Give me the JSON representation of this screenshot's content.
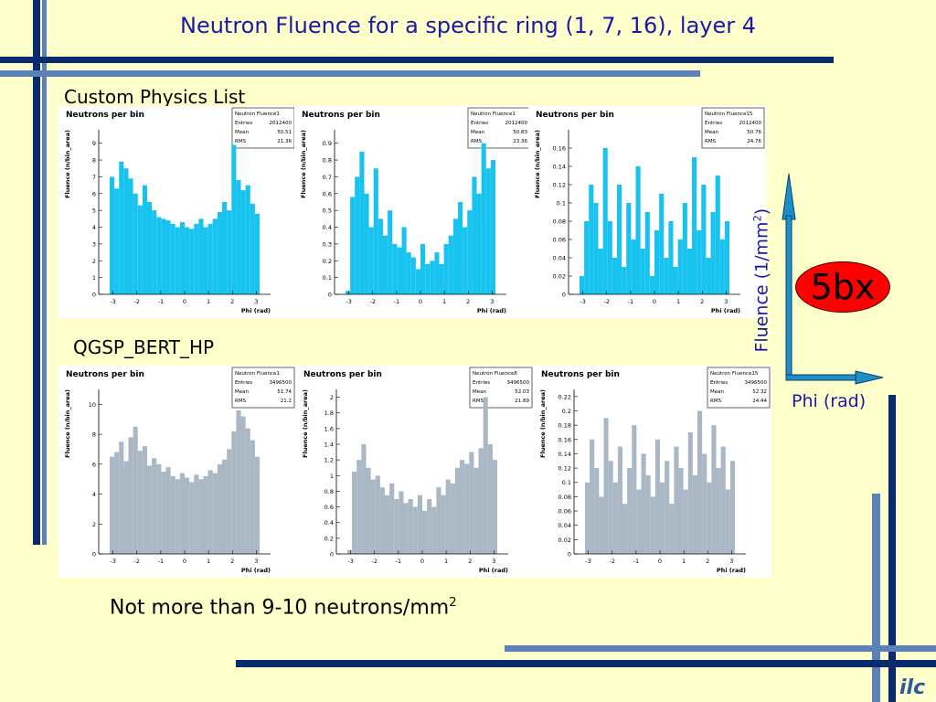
{
  "slide": {
    "title": "Neutron Fluence for a specific ring (1, 7, 16), layer 4",
    "label_custom": "Custom Physics List",
    "label_qgsp": "QGSP_BERT_HP",
    "footer_text": "Not more than 9-10 neutrons/mm",
    "footer_sup": "2",
    "fluence_axis_label": "Fluence (1/mm",
    "fluence_axis_sup": "2",
    "fluence_axis_close": ")",
    "phi_axis_label": "Phi (rad)",
    "badge": "5bx",
    "logo": "ilc"
  },
  "colors": {
    "background": "#ffffcc",
    "title": "#1a1aa8",
    "custom_bars": "#19c3f0",
    "qgsp_bars": "#aab7c4",
    "badge": "#ff0000",
    "axis_arrow": "#1e90c8"
  },
  "chart_data": [
    {
      "type": "bar",
      "panel": "custom-ring1",
      "title": "Neutrons per bin",
      "stats": {
        "name": "Neutron Fluence1",
        "entries": "2012400",
        "mean": "50.51",
        "rms": "21.36"
      },
      "xlabel": "Phi (rad)",
      "ylabel": "Fluence (n/bin_area)",
      "xlim": [
        -3.6,
        3.6
      ],
      "ylim": [
        0,
        9.8
      ],
      "xticks": [
        "-3",
        "-2",
        "-1",
        "0",
        "1",
        "2",
        "3"
      ],
      "yticks": [
        "0",
        "1",
        "2",
        "3",
        "4",
        "5",
        "6",
        "7",
        "8",
        "9"
      ],
      "ytick_values": [
        0,
        1,
        2,
        3,
        4,
        5,
        6,
        7,
        8,
        9
      ],
      "values": [
        7.0,
        6.3,
        7.9,
        7.5,
        6.9,
        6.0,
        5.3,
        6.5,
        5.5,
        5.0,
        4.6,
        4.5,
        4.4,
        4.2,
        4.0,
        4.3,
        4.0,
        3.9,
        4.2,
        4.5,
        4.0,
        4.2,
        4.5,
        4.9,
        5.5,
        5.0,
        8.9,
        6.8,
        6.2,
        6.5,
        5.4,
        4.8
      ]
    },
    {
      "type": "bar",
      "panel": "custom-ring7",
      "title": "Neutrons per bin",
      "stats": {
        "name": "Neutron Fluence1",
        "entries": "2012400",
        "mean": "50.83",
        "rms": "23.36"
      },
      "xlabel": "Phi (rad)",
      "ylabel": "Fluence (n/bin_area)",
      "xlim": [
        -3.6,
        3.6
      ],
      "ylim": [
        0,
        0.98
      ],
      "xticks": [
        "-3",
        "-2",
        "-1",
        "0",
        "1",
        "2",
        "3"
      ],
      "yticks": [
        "0",
        "0.1",
        "0.2",
        "0.3",
        "0.4",
        "0.5",
        "0.6",
        "0.7",
        "0.8",
        "0.9"
      ],
      "ytick_values": [
        0,
        0.1,
        0.2,
        0.3,
        0.4,
        0.5,
        0.6,
        0.7,
        0.8,
        0.9
      ],
      "values": [
        0.02,
        0.58,
        0.7,
        0.85,
        0.6,
        0.4,
        0.75,
        0.45,
        0.35,
        0.5,
        0.3,
        0.28,
        0.4,
        0.25,
        0.22,
        0.15,
        0.3,
        0.18,
        0.2,
        0.25,
        0.18,
        0.3,
        0.35,
        0.45,
        0.55,
        0.4,
        0.5,
        0.7,
        0.6,
        0.9,
        0.75,
        0.8
      ]
    },
    {
      "type": "bar",
      "panel": "custom-ring16",
      "title": "Neutrons per bin",
      "stats": {
        "name": "Neutron Fluence15",
        "entries": "2012400",
        "mean": "50.76",
        "rms": "24.76"
      },
      "xlabel": "Phi (rad)",
      "ylabel": "Fluence (n/bin_area)",
      "xlim": [
        -3.6,
        3.6
      ],
      "ylim": [
        0,
        0.18
      ],
      "xticks": [
        "-3",
        "-2",
        "-1",
        "0",
        "1",
        "2",
        "3"
      ],
      "yticks": [
        "0",
        "0.02",
        "0.04",
        "0.06",
        "0.08",
        "0.1",
        "0.12",
        "0.14",
        "0.16"
      ],
      "ytick_values": [
        0,
        0.02,
        0.04,
        0.06,
        0.08,
        0.1,
        0.12,
        0.14,
        0.16
      ],
      "values": [
        0.02,
        0.08,
        0.12,
        0.1,
        0.05,
        0.16,
        0.08,
        0.04,
        0.12,
        0.03,
        0.1,
        0.06,
        0.14,
        0.05,
        0.09,
        0.02,
        0.07,
        0.11,
        0.04,
        0.08,
        0.03,
        0.06,
        0.1,
        0.05,
        0.15,
        0.07,
        0.12,
        0.04,
        0.09,
        0.13,
        0.06,
        0.08
      ]
    },
    {
      "type": "bar",
      "panel": "qgsp-ring1",
      "title": "Neutrons per bin",
      "stats": {
        "name": "Neutron Fluence1",
        "entries": "3496500",
        "mean": "51.74",
        "rms": "21.2"
      },
      "xlabel": "Phi (rad)",
      "ylabel": "Fluence (n/bin_area)",
      "xlim": [
        -3.6,
        3.6
      ],
      "ylim": [
        0,
        11
      ],
      "xticks": [
        "-3",
        "-2",
        "-1",
        "0",
        "1",
        "2",
        "3"
      ],
      "yticks": [
        "0",
        "2",
        "4",
        "6",
        "8",
        "10"
      ],
      "ytick_values": [
        0,
        2,
        4,
        6,
        8,
        10
      ],
      "values": [
        6.5,
        6.8,
        7.5,
        6.2,
        7.8,
        8.5,
        6.9,
        7.2,
        5.9,
        6.4,
        6.0,
        5.5,
        5.8,
        5.2,
        5.0,
        5.4,
        5.1,
        4.8,
        5.3,
        5.0,
        5.2,
        5.6,
        5.4,
        6.0,
        6.3,
        7.0,
        8.2,
        9.6,
        9.2,
        8.4,
        7.6,
        6.5
      ]
    },
    {
      "type": "bar",
      "panel": "qgsp-ring7",
      "title": "Neutrons per bin",
      "stats": {
        "name": "Neutron Fluence8",
        "entries": "3496500",
        "mean": "52.03",
        "rms": "21.89"
      },
      "xlabel": "Phi (rad)",
      "ylabel": "Fluence (n/bin_area)",
      "xlim": [
        -3.6,
        3.6
      ],
      "ylim": [
        0,
        2.1
      ],
      "xticks": [
        "-3",
        "-2",
        "-1",
        "0",
        "1",
        "2",
        "3"
      ],
      "yticks": [
        "0",
        "0.2",
        "0.4",
        "0.6",
        "0.8",
        "1",
        "1.2",
        "1.4",
        "1.6",
        "1.8",
        "2"
      ],
      "ytick_values": [
        0,
        0.2,
        0.4,
        0.6,
        0.8,
        1,
        1.2,
        1.4,
        1.6,
        1.8,
        2
      ],
      "values": [
        0.05,
        1.05,
        1.2,
        1.4,
        1.1,
        0.95,
        1.0,
        0.85,
        0.75,
        0.9,
        0.7,
        0.8,
        0.65,
        0.7,
        0.6,
        0.75,
        0.55,
        0.7,
        0.6,
        0.85,
        0.75,
        0.95,
        0.9,
        1.1,
        1.2,
        1.15,
        1.3,
        1.1,
        1.35,
        2.0,
        1.4,
        1.2
      ]
    },
    {
      "type": "bar",
      "panel": "qgsp-ring16",
      "title": "Neutrons per bin",
      "stats": {
        "name": "Neutron Fluence15",
        "entries": "3496500",
        "mean": "52.32",
        "rms": "24.44"
      },
      "xlabel": "Phi (rad)",
      "ylabel": "Fluence (n/bin_area)",
      "xlim": [
        -3.6,
        3.6
      ],
      "ylim": [
        0,
        0.23
      ],
      "xticks": [
        "-3",
        "-2",
        "-1",
        "0",
        "1",
        "2",
        "3"
      ],
      "yticks": [
        "0",
        "0.02",
        "0.04",
        "0.06",
        "0.08",
        "0.1",
        "0.12",
        "0.14",
        "0.16",
        "0.18",
        "0.2",
        "0.22"
      ],
      "ytick_values": [
        0,
        0.02,
        0.04,
        0.06,
        0.08,
        0.1,
        0.12,
        0.14,
        0.16,
        0.18,
        0.2,
        0.22
      ],
      "values": [
        0.1,
        0.16,
        0.12,
        0.08,
        0.19,
        0.13,
        0.1,
        0.15,
        0.07,
        0.12,
        0.18,
        0.09,
        0.14,
        0.11,
        0.08,
        0.16,
        0.1,
        0.13,
        0.07,
        0.15,
        0.12,
        0.09,
        0.17,
        0.11,
        0.2,
        0.14,
        0.1,
        0.18,
        0.12,
        0.15,
        0.09,
        0.13
      ]
    }
  ]
}
